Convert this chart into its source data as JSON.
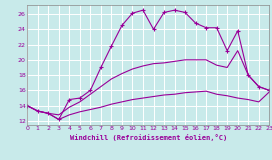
{
  "xlabel": "Windchill (Refroidissement éolien,°C)",
  "bg_color": "#c8eaea",
  "grid_color": "#b8d8d8",
  "line_color": "#990099",
  "xlim": [
    0,
    23
  ],
  "ylim": [
    11.5,
    27.2
  ],
  "xticks": [
    0,
    1,
    2,
    3,
    4,
    5,
    6,
    7,
    8,
    9,
    10,
    11,
    12,
    13,
    14,
    15,
    16,
    17,
    18,
    19,
    20,
    21,
    22,
    23
  ],
  "yticks": [
    12,
    14,
    16,
    18,
    20,
    22,
    24,
    26
  ],
  "line1_x": [
    0,
    1,
    2,
    3,
    4,
    5,
    6,
    7,
    8,
    9,
    10,
    11,
    12,
    13,
    14,
    15,
    16,
    17,
    18,
    19,
    20,
    21,
    22,
    23
  ],
  "line1_y": [
    14.0,
    13.3,
    13.0,
    12.2,
    14.8,
    15.0,
    16.0,
    19.0,
    21.8,
    24.5,
    26.1,
    26.5,
    24.0,
    26.2,
    26.5,
    26.2,
    24.8,
    24.2,
    24.2,
    21.2,
    23.8,
    18.0,
    16.5,
    16.0
  ],
  "line2_x": [
    0,
    1,
    2,
    3,
    4,
    5,
    6,
    7,
    8,
    9,
    10,
    11,
    12,
    13,
    14,
    15,
    16,
    17,
    18,
    19,
    20,
    21,
    22,
    23
  ],
  "line2_y": [
    14.0,
    13.3,
    13.0,
    12.8,
    13.8,
    14.5,
    15.5,
    16.5,
    17.5,
    18.2,
    18.8,
    19.2,
    19.5,
    19.6,
    19.8,
    20.0,
    20.0,
    20.0,
    19.3,
    19.0,
    21.2,
    18.0,
    16.5,
    16.0
  ],
  "line3_x": [
    0,
    1,
    2,
    3,
    4,
    5,
    6,
    7,
    8,
    9,
    10,
    11,
    12,
    13,
    14,
    15,
    16,
    17,
    18,
    19,
    20,
    21,
    22,
    23
  ],
  "line3_y": [
    14.0,
    13.3,
    13.0,
    12.2,
    12.8,
    13.2,
    13.5,
    13.8,
    14.2,
    14.5,
    14.8,
    15.0,
    15.2,
    15.4,
    15.5,
    15.7,
    15.8,
    15.9,
    15.5,
    15.3,
    15.0,
    14.8,
    14.5,
    15.8
  ]
}
